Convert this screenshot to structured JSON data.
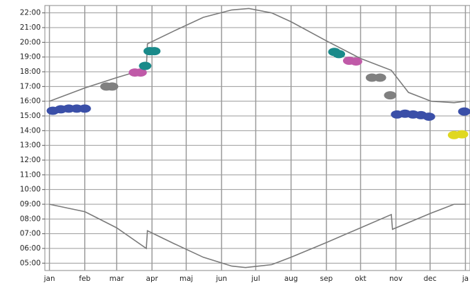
{
  "chart_data": {
    "type": "line",
    "xlim": [
      -4,
      369
    ],
    "ylim": [
      4.5,
      22.5
    ],
    "grid": true,
    "xticks": [
      {
        "value": 0,
        "label": "jan"
      },
      {
        "value": 31,
        "label": "feb"
      },
      {
        "value": 59,
        "label": "mar"
      },
      {
        "value": 90,
        "label": "apr"
      },
      {
        "value": 120,
        "label": "maj"
      },
      {
        "value": 151,
        "label": "jun"
      },
      {
        "value": 181,
        "label": "jul"
      },
      {
        "value": 212,
        "label": "aug"
      },
      {
        "value": 243,
        "label": "sep"
      },
      {
        "value": 273,
        "label": "okt"
      },
      {
        "value": 304,
        "label": "nov"
      },
      {
        "value": 334,
        "label": "dec"
      },
      {
        "value": 365,
        "label": "ja"
      }
    ],
    "yticks": [
      {
        "value": 5,
        "label": "05:00"
      },
      {
        "value": 6,
        "label": "06:00"
      },
      {
        "value": 7,
        "label": "07:00"
      },
      {
        "value": 8,
        "label": "08:00"
      },
      {
        "value": 9,
        "label": "09:00"
      },
      {
        "value": 10,
        "label": "10:00"
      },
      {
        "value": 11,
        "label": "11:00"
      },
      {
        "value": 12,
        "label": "12:00"
      },
      {
        "value": 13,
        "label": "13:00"
      },
      {
        "value": 14,
        "label": "14:00"
      },
      {
        "value": 15,
        "label": "15:00"
      },
      {
        "value": 16,
        "label": "16:00"
      },
      {
        "value": 17,
        "label": "17:00"
      },
      {
        "value": 18,
        "label": "18:00"
      },
      {
        "value": 19,
        "label": "19:00"
      },
      {
        "value": 20,
        "label": "20:00"
      },
      {
        "value": 21,
        "label": "21:00"
      },
      {
        "value": 22,
        "label": "22:00"
      }
    ],
    "series": [
      {
        "color": "#7a7a7a",
        "x": [
          0,
          31,
          59,
          85,
          86,
          110,
          135,
          160,
          175,
          195,
          212,
          243,
          273,
          300,
          315,
          335,
          355,
          365
        ],
        "values": [
          16.0,
          16.9,
          17.6,
          18.2,
          19.9,
          20.8,
          21.7,
          22.2,
          22.3,
          22.0,
          21.4,
          20.1,
          18.9,
          18.1,
          16.6,
          16.0,
          15.9,
          16.0
        ]
      },
      {
        "color": "#7a7a7a",
        "x": [
          0,
          31,
          59,
          85,
          86,
          110,
          135,
          160,
          172,
          195,
          212,
          243,
          273,
          300,
          301,
          335,
          355,
          365
        ],
        "values": [
          9.0,
          8.5,
          7.4,
          6.0,
          7.2,
          6.3,
          5.4,
          4.8,
          4.7,
          4.9,
          5.4,
          6.4,
          7.4,
          8.3,
          7.3,
          8.4,
          9.0,
          9.0
        ]
      },
      {
        "color": "#3a4fa8",
        "marker": "blob",
        "x": [
          3,
          10,
          17,
          24,
          31,
          305,
          312,
          319,
          326,
          333,
          364
        ],
        "values": [
          15.35,
          15.45,
          15.5,
          15.5,
          15.5,
          15.1,
          15.15,
          15.1,
          15.05,
          14.95,
          15.3
        ]
      },
      {
        "color": "#808080",
        "marker": "blob",
        "x": [
          50,
          55,
          283,
          290,
          299
        ],
        "values": [
          17.0,
          17.0,
          17.6,
          17.6,
          16.4
        ]
      },
      {
        "color": "#c05aa8",
        "marker": "blob",
        "x": [
          75,
          80,
          263,
          269
        ],
        "values": [
          17.95,
          17.95,
          18.75,
          18.7
        ]
      },
      {
        "color": "#1a8a8a",
        "marker": "blob",
        "x": [
          84,
          88,
          92,
          250,
          254
        ],
        "values": [
          18.4,
          19.4,
          19.4,
          19.35,
          19.2
        ]
      },
      {
        "color": "#e0d820",
        "marker": "blob",
        "x": [
          355,
          362
        ],
        "values": [
          13.7,
          13.75
        ]
      }
    ]
  }
}
